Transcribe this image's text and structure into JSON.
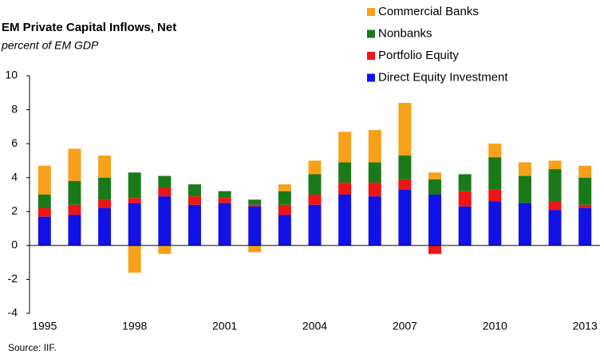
{
  "chart_data": {
    "type": "stacked_bar",
    "title": "EM Private Capital Inflows, Net",
    "subtitle": "percent of EM GDP",
    "source": "Source: IIF.",
    "categories": [
      "1995",
      null,
      null,
      "1998",
      null,
      null,
      "2001",
      null,
      null,
      "2004",
      null,
      null,
      "2007",
      null,
      null,
      "2010",
      null,
      null,
      "2013"
    ],
    "series": [
      {
        "name": "Direct Equity Investment",
        "color": "#1212e6",
        "values": [
          1.7,
          1.8,
          2.2,
          2.5,
          2.9,
          2.4,
          2.5,
          2.3,
          1.8,
          2.4,
          3.0,
          2.9,
          3.3,
          3.0,
          2.3,
          2.6,
          2.5,
          2.1,
          2.2
        ]
      },
      {
        "name": "Portfolio Equity",
        "color": "#ee1515",
        "values": [
          0.5,
          0.6,
          0.5,
          0.3,
          0.5,
          0.5,
          0.3,
          0.1,
          0.6,
          0.6,
          0.7,
          0.8,
          0.6,
          -0.5,
          0.9,
          0.7,
          0,
          0.5,
          0.2
        ]
      },
      {
        "name": "Nonbanks",
        "color": "#1a7a1a",
        "values": [
          0.8,
          1.4,
          1.3,
          1.5,
          0.7,
          0.7,
          0.4,
          0.3,
          0.8,
          1.2,
          1.2,
          1.2,
          1.4,
          0.9,
          1.0,
          1.9,
          1.6,
          1.9,
          1.6
        ]
      },
      {
        "name": "Commercial Banks",
        "color": "#f7a11a",
        "values": [
          1.7,
          1.9,
          1.3,
          -1.6,
          -0.5,
          0,
          0,
          -0.4,
          0.4,
          0.8,
          1.8,
          1.9,
          3.1,
          0.4,
          0,
          0.8,
          0.8,
          0.5,
          0.7
        ]
      }
    ],
    "ylim": [
      -4,
      10
    ],
    "yticks": [
      -4,
      -2,
      0,
      2,
      4,
      6,
      8,
      10
    ]
  }
}
